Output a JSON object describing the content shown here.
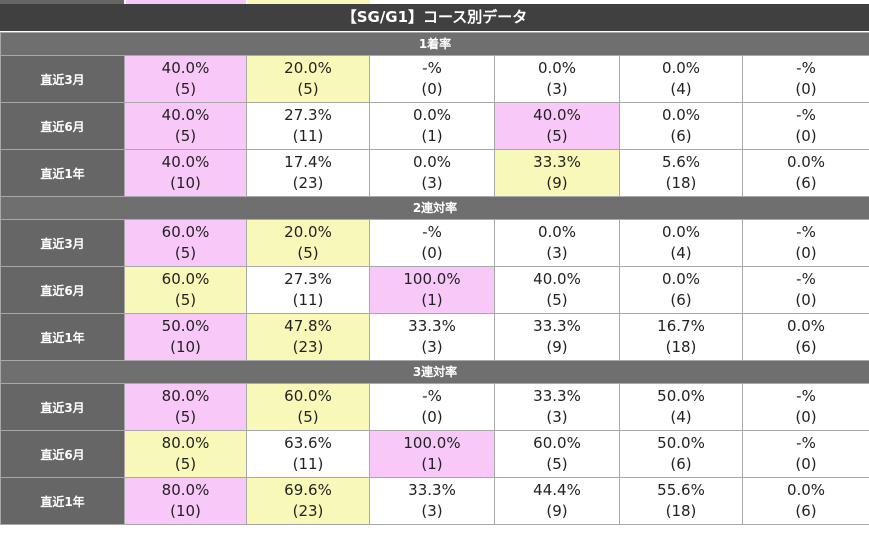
{
  "title": "【SG/G1】コース別データ",
  "colors": {
    "pink": "#f8c9f8",
    "yellow": "#f8f8b8",
    "header": "#666666"
  },
  "sections": [
    {
      "label": "1着率",
      "rows": [
        {
          "label": "直近3月",
          "cells": [
            {
              "pct": "40.0%",
              "count": "(5)",
              "hl": "pink"
            },
            {
              "pct": "20.0%",
              "count": "(5)",
              "hl": "yellow"
            },
            {
              "pct": "-%",
              "count": "(0)",
              "hl": ""
            },
            {
              "pct": "0.0%",
              "count": "(3)",
              "hl": ""
            },
            {
              "pct": "0.0%",
              "count": "(4)",
              "hl": ""
            },
            {
              "pct": "-%",
              "count": "(0)",
              "hl": ""
            }
          ]
        },
        {
          "label": "直近6月",
          "cells": [
            {
              "pct": "40.0%",
              "count": "(5)",
              "hl": "pink"
            },
            {
              "pct": "27.3%",
              "count": "(11)",
              "hl": ""
            },
            {
              "pct": "0.0%",
              "count": "(1)",
              "hl": ""
            },
            {
              "pct": "40.0%",
              "count": "(5)",
              "hl": "pink"
            },
            {
              "pct": "0.0%",
              "count": "(6)",
              "hl": ""
            },
            {
              "pct": "-%",
              "count": "(0)",
              "hl": ""
            }
          ]
        },
        {
          "label": "直近1年",
          "cells": [
            {
              "pct": "40.0%",
              "count": "(10)",
              "hl": "pink"
            },
            {
              "pct": "17.4%",
              "count": "(23)",
              "hl": ""
            },
            {
              "pct": "0.0%",
              "count": "(3)",
              "hl": ""
            },
            {
              "pct": "33.3%",
              "count": "(9)",
              "hl": "yellow"
            },
            {
              "pct": "5.6%",
              "count": "(18)",
              "hl": ""
            },
            {
              "pct": "0.0%",
              "count": "(6)",
              "hl": ""
            }
          ]
        }
      ]
    },
    {
      "label": "2連対率",
      "rows": [
        {
          "label": "直近3月",
          "cells": [
            {
              "pct": "60.0%",
              "count": "(5)",
              "hl": "pink"
            },
            {
              "pct": "20.0%",
              "count": "(5)",
              "hl": "yellow"
            },
            {
              "pct": "-%",
              "count": "(0)",
              "hl": ""
            },
            {
              "pct": "0.0%",
              "count": "(3)",
              "hl": ""
            },
            {
              "pct": "0.0%",
              "count": "(4)",
              "hl": ""
            },
            {
              "pct": "-%",
              "count": "(0)",
              "hl": ""
            }
          ]
        },
        {
          "label": "直近6月",
          "cells": [
            {
              "pct": "60.0%",
              "count": "(5)",
              "hl": "yellow"
            },
            {
              "pct": "27.3%",
              "count": "(11)",
              "hl": ""
            },
            {
              "pct": "100.0%",
              "count": "(1)",
              "hl": "pink"
            },
            {
              "pct": "40.0%",
              "count": "(5)",
              "hl": ""
            },
            {
              "pct": "0.0%",
              "count": "(6)",
              "hl": ""
            },
            {
              "pct": "-%",
              "count": "(0)",
              "hl": ""
            }
          ]
        },
        {
          "label": "直近1年",
          "cells": [
            {
              "pct": "50.0%",
              "count": "(10)",
              "hl": "pink"
            },
            {
              "pct": "47.8%",
              "count": "(23)",
              "hl": "yellow"
            },
            {
              "pct": "33.3%",
              "count": "(3)",
              "hl": ""
            },
            {
              "pct": "33.3%",
              "count": "(9)",
              "hl": ""
            },
            {
              "pct": "16.7%",
              "count": "(18)",
              "hl": ""
            },
            {
              "pct": "0.0%",
              "count": "(6)",
              "hl": ""
            }
          ]
        }
      ]
    },
    {
      "label": "3連対率",
      "rows": [
        {
          "label": "直近3月",
          "cells": [
            {
              "pct": "80.0%",
              "count": "(5)",
              "hl": "pink"
            },
            {
              "pct": "60.0%",
              "count": "(5)",
              "hl": "yellow"
            },
            {
              "pct": "-%",
              "count": "(0)",
              "hl": ""
            },
            {
              "pct": "33.3%",
              "count": "(3)",
              "hl": ""
            },
            {
              "pct": "50.0%",
              "count": "(4)",
              "hl": ""
            },
            {
              "pct": "-%",
              "count": "(0)",
              "hl": ""
            }
          ]
        },
        {
          "label": "直近6月",
          "cells": [
            {
              "pct": "80.0%",
              "count": "(5)",
              "hl": "yellow"
            },
            {
              "pct": "63.6%",
              "count": "(11)",
              "hl": ""
            },
            {
              "pct": "100.0%",
              "count": "(1)",
              "hl": "pink"
            },
            {
              "pct": "60.0%",
              "count": "(5)",
              "hl": ""
            },
            {
              "pct": "50.0%",
              "count": "(6)",
              "hl": ""
            },
            {
              "pct": "-%",
              "count": "(0)",
              "hl": ""
            }
          ]
        },
        {
          "label": "直近1年",
          "cells": [
            {
              "pct": "80.0%",
              "count": "(10)",
              "hl": "pink"
            },
            {
              "pct": "69.6%",
              "count": "(23)",
              "hl": "yellow"
            },
            {
              "pct": "33.3%",
              "count": "(3)",
              "hl": ""
            },
            {
              "pct": "44.4%",
              "count": "(9)",
              "hl": ""
            },
            {
              "pct": "55.6%",
              "count": "(18)",
              "hl": ""
            },
            {
              "pct": "0.0%",
              "count": "(6)",
              "hl": ""
            }
          ]
        }
      ]
    }
  ]
}
